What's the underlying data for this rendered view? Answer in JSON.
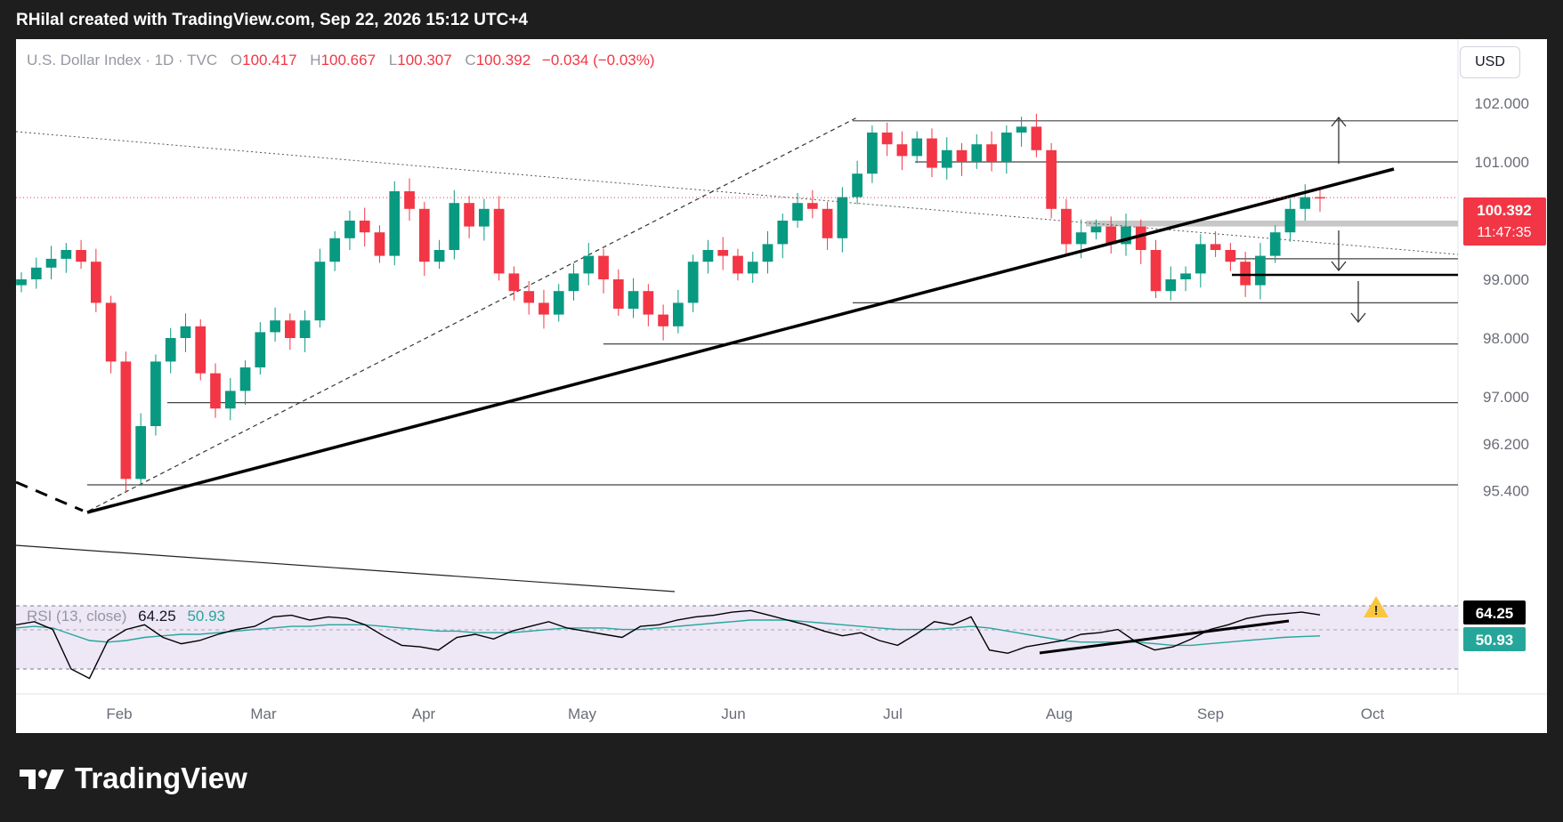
{
  "header": {
    "attribution": "RHilal created with TradingView.com, Sep 22, 2026 15:12 UTC+4"
  },
  "legend": {
    "symbol": "U.S. Dollar Index · 1D · TVC",
    "open_label": "O",
    "open": "100.417",
    "high_label": "H",
    "high": "100.667",
    "low_label": "L",
    "low": "100.307",
    "close_label": "C",
    "close": "100.392",
    "change": "−0.034 (−0.03%)"
  },
  "currency_button": "USD",
  "price_badge": {
    "price": "100.392",
    "countdown": "11:47:35"
  },
  "rsi": {
    "label": "RSI (13, close)",
    "rsi_value": "64.25",
    "ma_value": "50.93"
  },
  "brand": {
    "logo_text": "TradingView"
  },
  "colors": {
    "up": "#089981",
    "down": "#f23645",
    "rsi_line": "#000000",
    "rsi_ma": "#26a69a",
    "rsi_band": "#ede7f6"
  },
  "chart_data": [
    {
      "type": "candlestick",
      "title": "U.S. Dollar Index · 1D · TVC",
      "ylabel": "USD",
      "ylim": [
        94.9,
        102.5
      ],
      "y_ticks": [
        "102.000",
        "101.000",
        "100.000",
        "99.000",
        "98.000",
        "97.000",
        "96.200",
        "95.400"
      ],
      "x_ticks": [
        "Feb",
        "Mar",
        "Apr",
        "May",
        "Jun",
        "Jul",
        "Aug",
        "Sep",
        "Oct"
      ],
      "last": {
        "open": 100.417,
        "high": 100.667,
        "low": 100.307,
        "close": 100.392,
        "change": -0.034,
        "change_pct": -0.03
      },
      "horizontal_levels": [
        101.7,
        101.0,
        99.35,
        98.6,
        97.9,
        96.9,
        95.5
      ],
      "shaded_zone": [
        99.9,
        100.0
      ],
      "trendline_support": {
        "from": [
          "Jan 20",
          95.5
        ],
        "to": [
          "Sep 29",
          101.0
        ]
      },
      "candles_close": [
        99.0,
        99.2,
        99.35,
        99.5,
        99.3,
        98.6,
        97.6,
        95.6,
        96.5,
        97.6,
        98.0,
        98.2,
        97.4,
        96.8,
        97.1,
        97.5,
        98.1,
        98.3,
        98.0,
        98.3,
        99.3,
        99.7,
        100.0,
        99.8,
        99.4,
        100.5,
        100.2,
        99.3,
        99.5,
        100.3,
        99.9,
        100.2,
        99.1,
        98.8,
        98.6,
        98.4,
        98.8,
        99.1,
        99.4,
        99.0,
        98.5,
        98.8,
        98.4,
        98.2,
        98.6,
        99.3,
        99.5,
        99.4,
        99.1,
        99.3,
        99.6,
        100.0,
        100.3,
        100.2,
        99.7,
        100.4,
        100.8,
        101.5,
        101.3,
        101.1,
        101.4,
        100.9,
        101.2,
        101.0,
        101.3,
        101.0,
        101.5,
        101.6,
        101.2,
        100.2,
        99.6,
        99.8,
        99.9,
        99.6,
        99.9,
        99.5,
        98.8,
        99.0,
        99.1,
        99.6,
        99.5,
        99.3,
        98.9,
        99.4,
        99.8,
        100.2,
        100.4,
        100.392
      ]
    },
    {
      "type": "line",
      "title": "RSI (13, close)",
      "ylim": [
        0,
        100
      ],
      "series": [
        {
          "name": "RSI",
          "values": [
            58,
            60,
            55,
            30,
            24,
            48,
            55,
            58,
            50,
            46,
            48,
            52,
            55,
            57,
            63,
            64,
            61,
            63,
            62,
            58,
            51,
            45,
            44,
            42,
            50,
            52,
            49,
            54,
            57,
            60,
            56,
            54,
            52,
            50,
            57,
            58,
            61,
            63,
            64,
            66,
            67,
            64,
            61,
            58,
            54,
            51,
            53,
            48,
            45,
            52,
            60,
            58,
            63,
            42,
            40,
            44,
            46,
            48,
            52,
            53,
            55,
            47,
            42,
            44,
            49,
            55,
            58,
            62,
            64,
            65,
            66,
            64.25
          ]
        },
        {
          "name": "MA",
          "values": [
            56,
            57,
            56,
            52,
            48,
            47,
            48,
            50,
            51,
            52,
            52,
            53,
            54,
            55,
            56,
            57,
            57,
            58,
            58,
            58,
            57,
            56,
            55,
            54,
            54,
            53,
            53,
            53,
            54,
            55,
            56,
            56,
            56,
            55,
            55,
            56,
            57,
            58,
            59,
            60,
            61,
            61,
            61,
            60,
            59,
            58,
            57,
            56,
            55,
            55,
            55,
            56,
            57,
            56,
            54,
            52,
            50,
            48,
            47,
            47,
            47,
            47,
            46,
            45,
            45,
            46,
            47,
            48,
            49,
            50,
            50.5,
            50.93
          ]
        }
      ]
    }
  ]
}
